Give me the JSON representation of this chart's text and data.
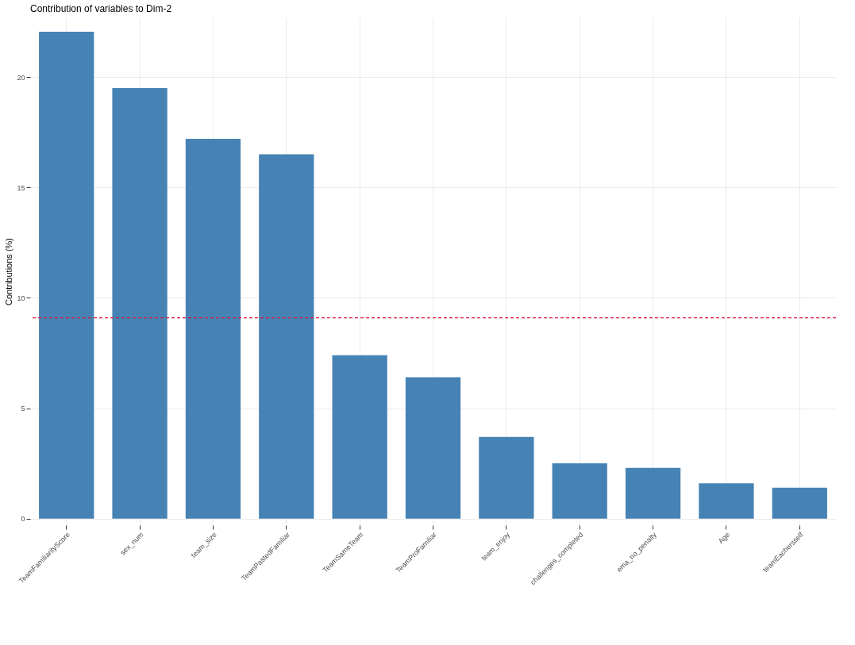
{
  "chart_data": {
    "type": "bar",
    "title": "Contribution of variables to Dim-2",
    "ylabel": "Contributions (%)",
    "categories": [
      "TeamFamiliarityScore",
      "sex_num",
      "team_size",
      "TeamPastedFamiliar",
      "TeamSameTeam",
      "TeamProFamiliar",
      "team_enjoy",
      "challenges_completed",
      "ema_no_penalty",
      "Age",
      "teamEachersself"
    ],
    "values": [
      22.05,
      19.5,
      17.2,
      16.5,
      7.4,
      6.4,
      3.7,
      2.5,
      2.3,
      1.6,
      1.4
    ],
    "color": "#4682b4",
    "ylim": [
      -0.3,
      22.7
    ],
    "yticks": [
      0,
      5,
      10,
      15,
      20
    ],
    "grid": true,
    "ref_lines": [
      {
        "axis": "y",
        "value": 9.09,
        "color": "#dc143c",
        "line_style": "dashed"
      }
    ]
  }
}
